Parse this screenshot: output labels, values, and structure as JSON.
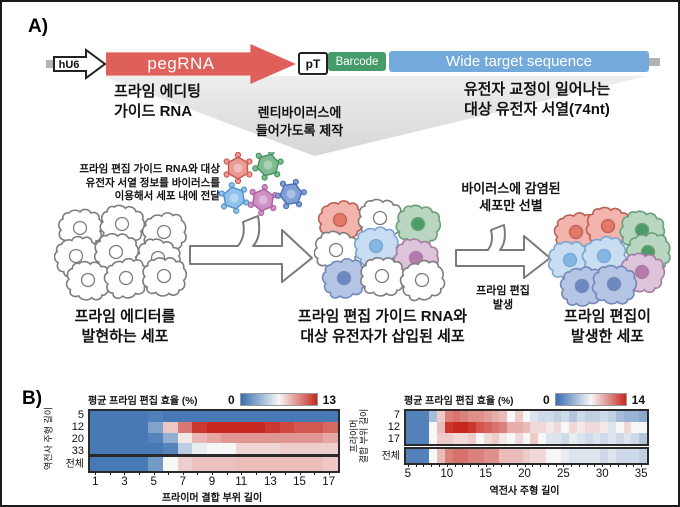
{
  "panel_a": {
    "label": "A)",
    "construct": {
      "hu6": "hU6",
      "pegrna": "pegRNA",
      "pt": "pT",
      "barcode": "Barcode",
      "wide_target": "Wide target sequence",
      "colors": {
        "pegrna": "#df5f5b",
        "barcode": "#459b69",
        "wide_target": "#74a9db"
      }
    },
    "peg_label": "프라임 에디팅\n가이드 RNA",
    "target_label": "유전자 교정이 일어나는\n대상 유전자 서열(74nt)",
    "lenti_label": "렌티바이러스에\n들어가도록 제작",
    "delivery_note": "프라임 편집 가이드 RNA와 대상\n유전자 서열 정보를 바이러스를\n이용해서 세포 내에 전달",
    "selection_note": "바이러스에 감염된\n세포만 선별",
    "editing_note": "프라임 편집\n발생",
    "caption_left": "프라임 에디터를\n발현하는 세포",
    "caption_mid": "프라임 편집 가이드 RNA와\n대상 유전자가 삽입된 세포",
    "caption_right": "프라임 편집이\n발생한 세포"
  },
  "panel_b": {
    "label": "B)"
  },
  "chart_data": [
    {
      "type": "heatmap",
      "title": "평균 프라임 편집 효율 (%)",
      "colorbar_min": 0,
      "colorbar_max": 13,
      "xlabel": "프라이머 결합 부위 길이",
      "ylabel": "역전사 주형 길이",
      "x_start": 1,
      "x_ticks": [
        1,
        3,
        5,
        7,
        9,
        11,
        13,
        15,
        17
      ],
      "rows": [
        {
          "label": "5",
          "values": [
            0.5,
            0.5,
            0.5,
            0.5,
            0.8,
            0.5,
            0.5,
            0.5,
            0.5,
            0.5,
            0.5,
            0.5,
            0.5,
            0.5,
            0.5,
            0.5,
            0.5
          ]
        },
        {
          "label": "12",
          "values": [
            0.5,
            0.5,
            0.5,
            0.5,
            2.5,
            8,
            10.5,
            12.5,
            13,
            13,
            13,
            13,
            12.5,
            12,
            11.5,
            11.5,
            11
          ]
        },
        {
          "label": "20",
          "values": [
            0.5,
            0.5,
            0.5,
            0.5,
            1,
            3,
            7,
            8.5,
            9,
            9.5,
            9.5,
            9.5,
            9.5,
            9.5,
            9.5,
            9.5,
            9
          ]
        },
        {
          "label": "33",
          "values": [
            0.5,
            0.5,
            0.5,
            0.5,
            0.5,
            1,
            4.5,
            6,
            6.5,
            6.5,
            7.5,
            7.5,
            7.5,
            7.8,
            7.8,
            7.8,
            7.8
          ]
        }
      ],
      "total_row": {
        "label": "전체",
        "values": [
          0.5,
          0.5,
          0.5,
          0.5,
          2,
          6.5,
          7.8,
          8.2,
          8.2,
          8.2,
          8.3,
          8.3,
          8.3,
          8.3,
          8.3,
          8.3,
          8
        ]
      }
    },
    {
      "type": "heatmap",
      "title": "평균 프라임 편집 효율 (%)",
      "colorbar_min": 0,
      "colorbar_max": 14,
      "xlabel": "역전사 주형 길이",
      "ylabel": "프라이머\n결합 부위 길이",
      "x_start": 5,
      "x_ticks": [
        5,
        10,
        15,
        20,
        25,
        30,
        35
      ],
      "rows": [
        {
          "label": "7",
          "values": [
            1,
            1,
            1,
            4,
            8.5,
            11,
            11.5,
            11,
            10.5,
            10.5,
            10,
            9.5,
            9,
            7,
            8.5,
            7,
            6,
            5.5,
            5.5,
            5,
            5.5,
            4.5,
            5.5,
            5,
            5,
            5.5,
            5,
            4,
            3.5,
            3.5,
            3
          ]
        },
        {
          "label": "12",
          "values": [
            1,
            1,
            1,
            7,
            9,
            13.5,
            14,
            14,
            13.5,
            12.5,
            12,
            11.5,
            11,
            9.5,
            9.5,
            9,
            8,
            8,
            7.5,
            8,
            7,
            8,
            7.5,
            8,
            8,
            7.5,
            6,
            7,
            8,
            7,
            7
          ]
        },
        {
          "label": "17",
          "values": [
            1,
            1,
            1,
            7,
            8.5,
            8.5,
            8,
            8,
            8.5,
            7,
            8,
            8.5,
            7.5,
            7,
            8,
            7,
            8.5,
            7,
            6,
            6,
            5.5,
            6.5,
            6,
            5.5,
            6,
            5.5,
            6,
            5.5,
            6,
            5.5,
            4.5
          ]
        }
      ],
      "total_row": {
        "label": "전체",
        "values": [
          1,
          1,
          1,
          7,
          9,
          11,
          11.5,
          11.5,
          11,
          11,
          10.5,
          10.5,
          9,
          9,
          9,
          8.5,
          8,
          8,
          7,
          7,
          6.5,
          6,
          6,
          6,
          6,
          5.5,
          6,
          5.5,
          5.5,
          5.5,
          5
        ]
      }
    }
  ]
}
